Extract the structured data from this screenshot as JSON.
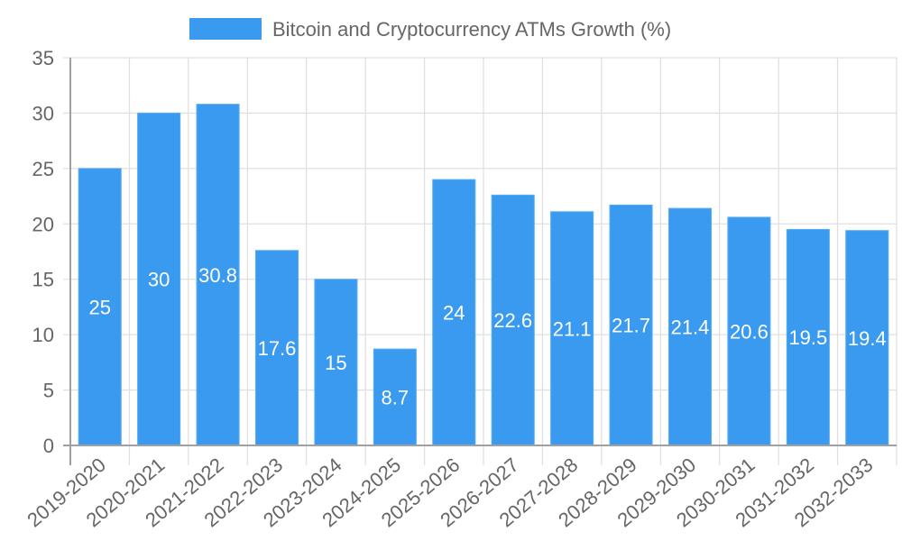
{
  "chart_data": {
    "type": "bar",
    "title": "",
    "legend": {
      "position": "top",
      "entries": [
        {
          "label": "Bitcoin and Cryptocurrency ATMs Growth (%)",
          "color": "#3a9af0"
        }
      ]
    },
    "xlabel": "",
    "ylabel": "",
    "ylim": [
      0,
      35
    ],
    "yticks": [
      0,
      5,
      10,
      15,
      20,
      25,
      30,
      35
    ],
    "grid": true,
    "categories": [
      "2019-2020",
      "2020-2021",
      "2021-2022",
      "2022-2023",
      "2023-2024",
      "2024-2025",
      "2025-2026",
      "2026-2027",
      "2027-2028",
      "2028-2029",
      "2029-2030",
      "2030-2031",
      "2031-2032",
      "2032-2033"
    ],
    "series": [
      {
        "name": "Bitcoin and Cryptocurrency ATMs Growth (%)",
        "color": "#3a9af0",
        "values": [
          25,
          30,
          30.8,
          17.6,
          15,
          8.7,
          24,
          22.6,
          21.1,
          21.7,
          21.4,
          20.6,
          19.5,
          19.4
        ],
        "data_labels": [
          "25",
          "30",
          "30.8",
          "17.6",
          "15",
          "8.7",
          "24",
          "22.6",
          "21.1",
          "21.7",
          "21.4",
          "20.6",
          "19.5",
          "19.4"
        ]
      }
    ]
  }
}
